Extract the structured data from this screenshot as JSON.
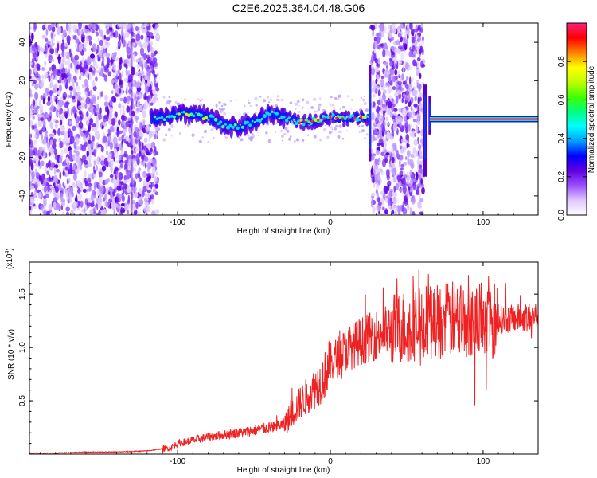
{
  "figure": {
    "title": "C2E6.2025.364.04.48.G06"
  },
  "chart_data": [
    {
      "type": "heatmap",
      "title": "C2E6.2025.364.04.48.G06",
      "xlabel": "Height of straight line (km)",
      "ylabel": "Frequency (Hz)",
      "xlim": [
        -197,
        136
      ],
      "ylim": [
        -50,
        50
      ],
      "x_ticks": [
        -100,
        0,
        100
      ],
      "y_ticks": [
        -40,
        -20,
        0,
        20,
        40
      ],
      "colorbar": {
        "label": "Normalized spectral amplitude",
        "range": [
          0,
          1
        ],
        "ticks": [
          0.0,
          0.2,
          0.4,
          0.6,
          0.8
        ],
        "colormap": [
          "#ffffff",
          "#e0c8ff",
          "#9a50ff",
          "#6000e0",
          "#0000ff",
          "#00a0ff",
          "#00ffff",
          "#00ff80",
          "#40ff00",
          "#c0ff00",
          "#ffff00",
          "#ff8000",
          "#ff0000",
          "#ff2080"
        ]
      },
      "noise_regions_km": [
        [
          -197,
          -113
        ],
        [
          27,
          61
        ]
      ],
      "vertical_artifacts_km": [
        26,
        62,
        65
      ],
      "signal_track": {
        "x": [
          -117,
          -110,
          -100,
          -90,
          -80,
          -70,
          -60,
          -50,
          -40,
          -30,
          -20,
          -10,
          0,
          10,
          20,
          25,
          65,
          80,
          100,
          136
        ],
        "y": [
          0,
          1,
          2,
          3,
          1,
          -3,
          -4,
          -2,
          3,
          1,
          -2,
          -1,
          1,
          0,
          1,
          1,
          0,
          0,
          0,
          0
        ]
      }
    },
    {
      "type": "line",
      "xlabel": "Height of straight line (km)",
      "ylabel": "SNR (10 * v/v)",
      "y_multiplier": "(x10",
      "y_multiplier_exp": "4",
      "y_multiplier_close": ")",
      "xlim": [
        -197,
        136
      ],
      "ylim": [
        0,
        1.8
      ],
      "x_ticks": [
        -100,
        0,
        100
      ],
      "y_ticks": [
        0.5,
        1.0,
        1.5
      ],
      "series": [
        {
          "name": "SNR",
          "color": "#ee2222",
          "x": [
            -197,
            -180,
            -160,
            -140,
            -120,
            -105,
            -100,
            -90,
            -80,
            -70,
            -60,
            -50,
            -40,
            -30,
            -25,
            -20,
            -15,
            -10,
            -5,
            0,
            10,
            20,
            30,
            40,
            50,
            60,
            70,
            80,
            90,
            100,
            110,
            120,
            136
          ],
          "values": [
            0.01,
            0.01,
            0.02,
            0.02,
            0.03,
            0.06,
            0.1,
            0.13,
            0.16,
            0.18,
            0.2,
            0.22,
            0.25,
            0.28,
            0.38,
            0.48,
            0.55,
            0.62,
            0.7,
            0.85,
            0.98,
            1.06,
            1.12,
            1.17,
            1.2,
            1.23,
            1.25,
            1.26,
            1.27,
            1.27,
            1.26,
            1.27,
            1.3
          ]
        }
      ]
    }
  ]
}
